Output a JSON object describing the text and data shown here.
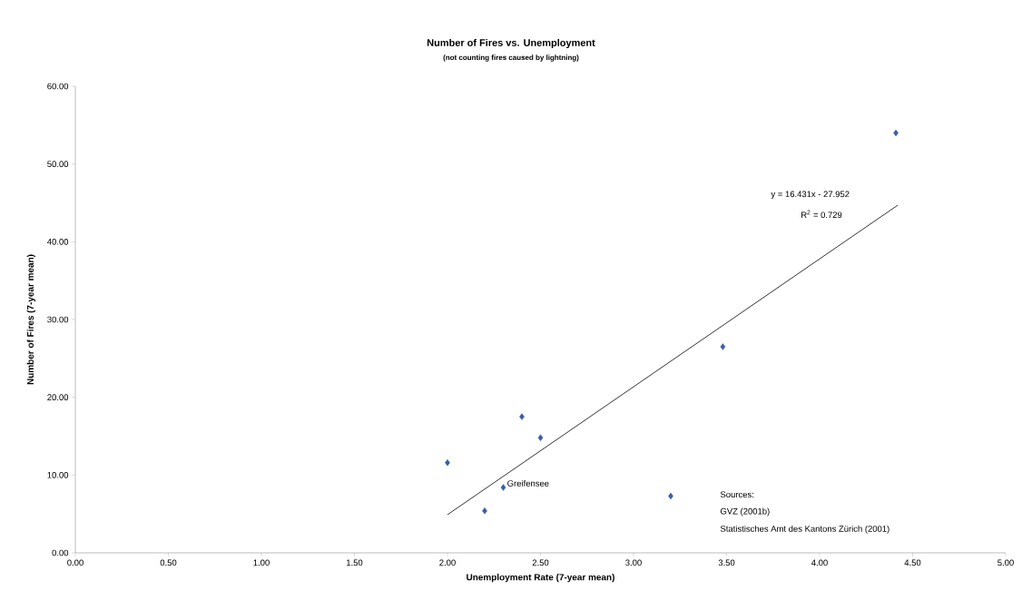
{
  "chart_data": {
    "type": "scatter",
    "title": "Number of Fires vs. Unemployment",
    "subtitle": "(not counting fires caused by lightning)",
    "xlabel": "Unemployment Rate (7-year mean)",
    "ylabel": "Number of Fires (7-year mean)",
    "marker": "diamond",
    "series": [
      {
        "color": "#3a5ca8",
        "x": [
          2.0,
          2.2,
          2.3,
          2.4,
          2.5,
          3.2,
          3.48,
          4.41
        ],
        "values": [
          11.6,
          5.4,
          8.4,
          17.5,
          14.8,
          7.3,
          26.5,
          54.0
        ]
      },
      {
        "type": "line",
        "color": "#000000",
        "marker": "none",
        "x": [
          2.0,
          4.42
        ],
        "values": [
          4.9,
          44.7
        ]
      }
    ],
    "xlim": [
      0,
      5
    ],
    "ylim": [
      0,
      60
    ],
    "xticks": [
      {
        "value": 0,
        "label": "0.00"
      },
      {
        "value": 0.5,
        "label": "0.50"
      },
      {
        "value": 1,
        "label": "1.00"
      },
      {
        "value": 1.5,
        "label": "1.50"
      },
      {
        "value": 2,
        "label": "2.00"
      },
      {
        "value": 2.5,
        "label": "2.50"
      },
      {
        "value": 3,
        "label": "3.00"
      },
      {
        "value": 3.5,
        "label": "3.50"
      },
      {
        "value": 4,
        "label": "4.00"
      },
      {
        "value": 4.5,
        "label": "4.50"
      },
      {
        "value": 5,
        "label": "5.00"
      }
    ],
    "yticks": [
      {
        "value": 0,
        "label": "0.00"
      },
      {
        "value": 10,
        "label": "10.00"
      },
      {
        "value": 20,
        "label": "20.00"
      },
      {
        "value": 30,
        "label": "30.00"
      },
      {
        "value": 40,
        "label": "40.00"
      },
      {
        "value": 50,
        "label": "50.00"
      },
      {
        "value": 60,
        "label": "60.00"
      }
    ],
    "grid": false,
    "annotations": [
      {
        "text": "Greifensee",
        "x": 2.3,
        "y": 8.4
      },
      "y = 16.431x - 27.952",
      "R$^{2}$ = 0.729",
      "Sources:",
      "GVZ (2001b)",
      "Statistisches Amt des Kantons Zürich (2001)"
    ]
  }
}
